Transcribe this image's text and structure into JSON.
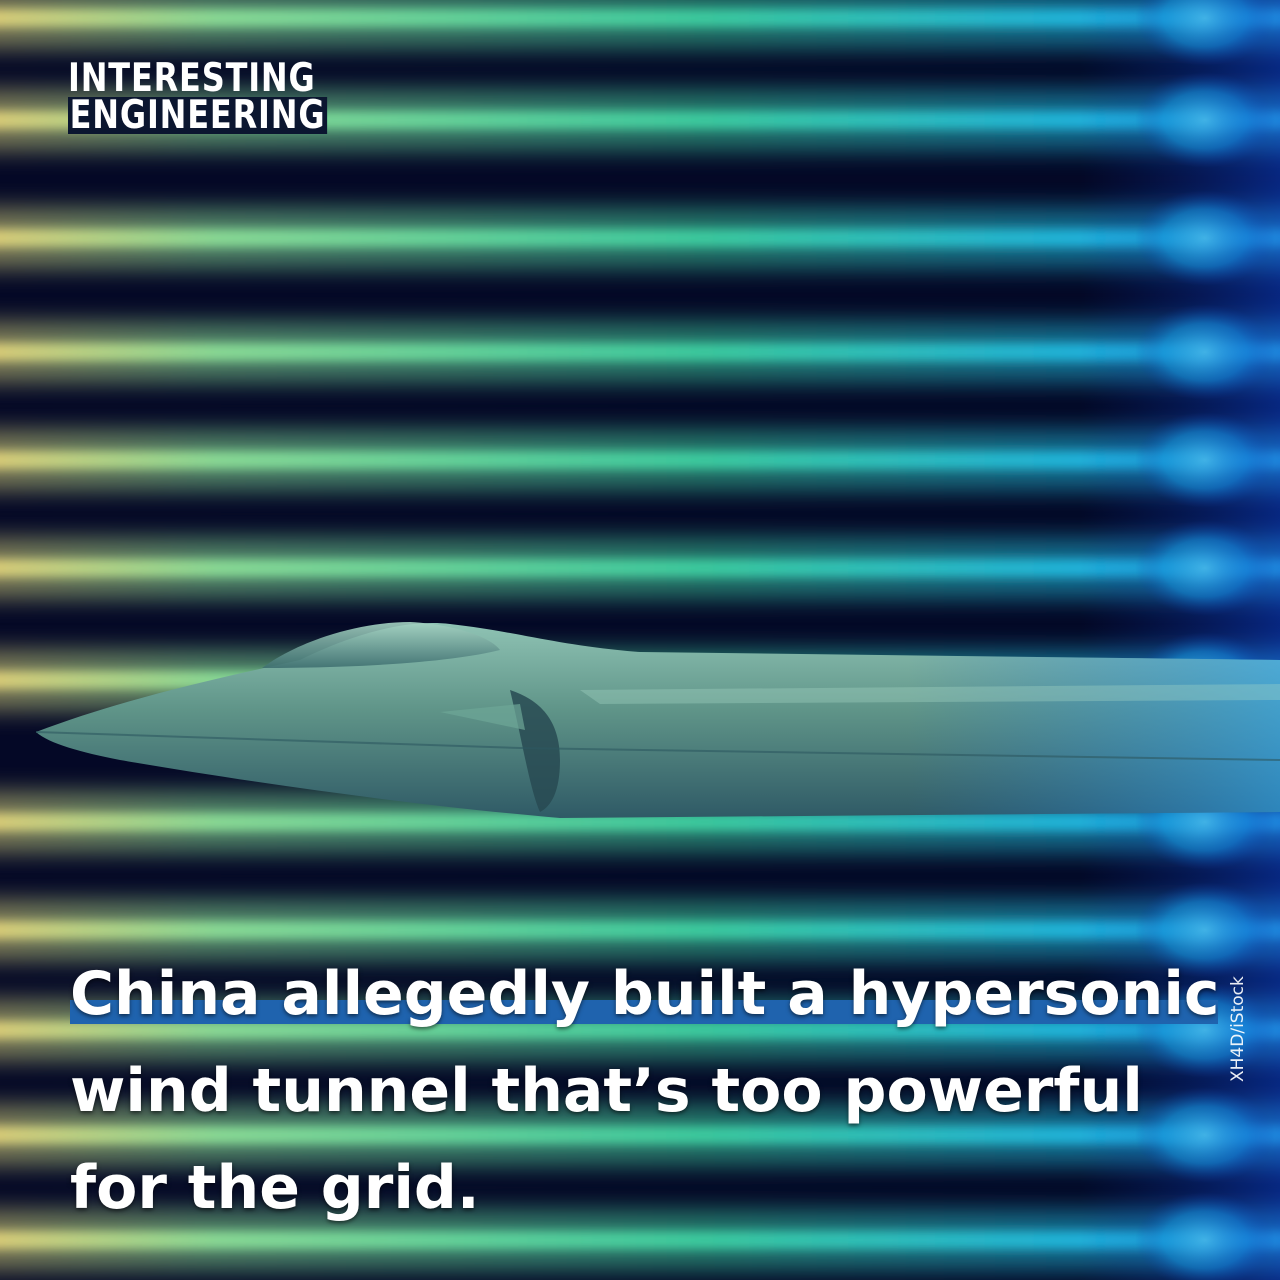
{
  "logo": {
    "line1": "INTERESTING",
    "line2": "ENGINEERING"
  },
  "headline": {
    "line1": "China allegedly built a hypersonic",
    "line2": "wind tunnel that’s too powerful",
    "line3": "for the grid."
  },
  "photo_credit": "XH4D/iStock",
  "colors": {
    "background_dark": "#050a2a",
    "streak_green": "#7be3a0",
    "streak_yellow": "#e8e27a",
    "streak_cyan": "#22c9f0",
    "highlight_bar": "#1f63ae",
    "text": "#ffffff"
  }
}
